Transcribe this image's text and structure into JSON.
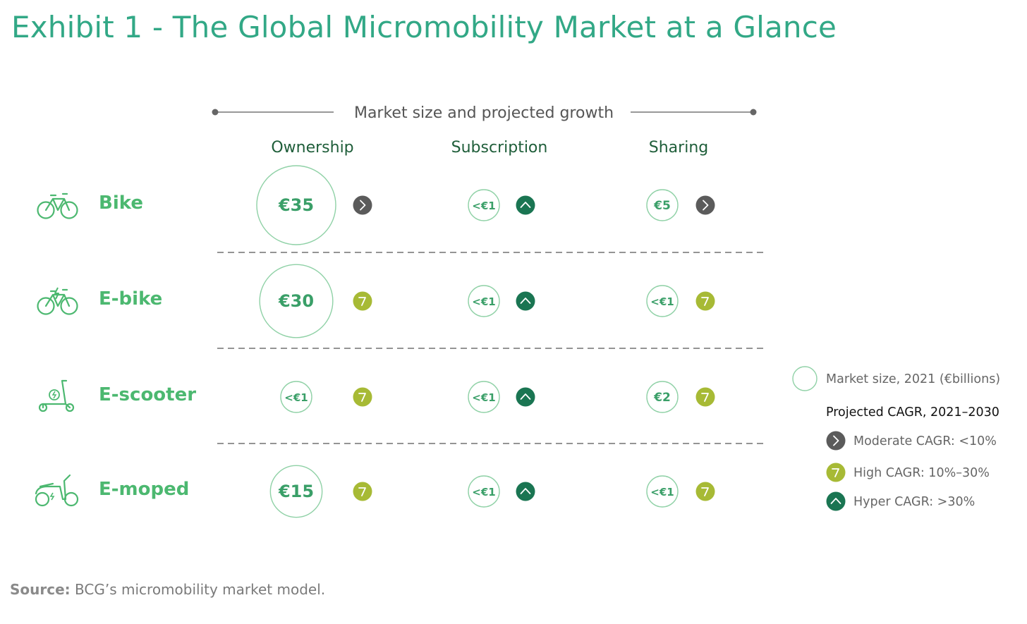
{
  "title": "Exhibit 1 - The Global Micromobility Market at a Glance",
  "source": {
    "label": "Source:",
    "text": "BCG’s micromobility market model."
  },
  "colors": {
    "accent": "#32a886",
    "row_label": "#4cb870",
    "column_header": "#1f5e3a",
    "bubble_stroke": "#8fd1a6",
    "bubble_text": "#3a9f68",
    "moderate": "#5b5b5b",
    "high": "#a7ba35",
    "hyper": "#1a7552",
    "grid_dash": "#555555"
  },
  "chart_data": {
    "type": "table",
    "header": "Market size and projected growth",
    "columns": [
      "Ownership",
      "Subscription",
      "Sharing"
    ],
    "rows": [
      {
        "label": "Bike",
        "icon": "bike-icon",
        "cells": [
          {
            "size": 35,
            "size_label": "€35",
            "cagr": "moderate"
          },
          {
            "size": 1,
            "size_label": "<€1",
            "cagr": "hyper"
          },
          {
            "size": 5,
            "size_label": "€5",
            "cagr": "moderate"
          }
        ]
      },
      {
        "label": "E-bike",
        "icon": "e-bike-icon",
        "cells": [
          {
            "size": 30,
            "size_label": "€30",
            "cagr": "high"
          },
          {
            "size": 1,
            "size_label": "<€1",
            "cagr": "hyper"
          },
          {
            "size": 1,
            "size_label": "<€1",
            "cagr": "high"
          }
        ]
      },
      {
        "label": "E-scooter",
        "icon": "e-scooter-icon",
        "cells": [
          {
            "size": 1,
            "size_label": "<€1",
            "cagr": "high"
          },
          {
            "size": 1,
            "size_label": "<€1",
            "cagr": "hyper"
          },
          {
            "size": 2,
            "size_label": "€2",
            "cagr": "high"
          }
        ]
      },
      {
        "label": "E-moped",
        "icon": "e-moped-icon",
        "cells": [
          {
            "size": 15,
            "size_label": "€15",
            "cagr": "high"
          },
          {
            "size": 1,
            "size_label": "<€1",
            "cagr": "hyper"
          },
          {
            "size": 1,
            "size_label": "<€1",
            "cagr": "high"
          }
        ]
      }
    ],
    "legend": {
      "market_size": "Market size, 2021 (€billions)",
      "cagr_title": "Projected CAGR, 2021–2030",
      "items": [
        {
          "key": "moderate",
          "label": "Moderate CAGR: <10%"
        },
        {
          "key": "high",
          "label": "High CAGR: 10%–30%"
        },
        {
          "key": "hyper",
          "label": "Hyper CAGR: >30%"
        }
      ]
    }
  }
}
